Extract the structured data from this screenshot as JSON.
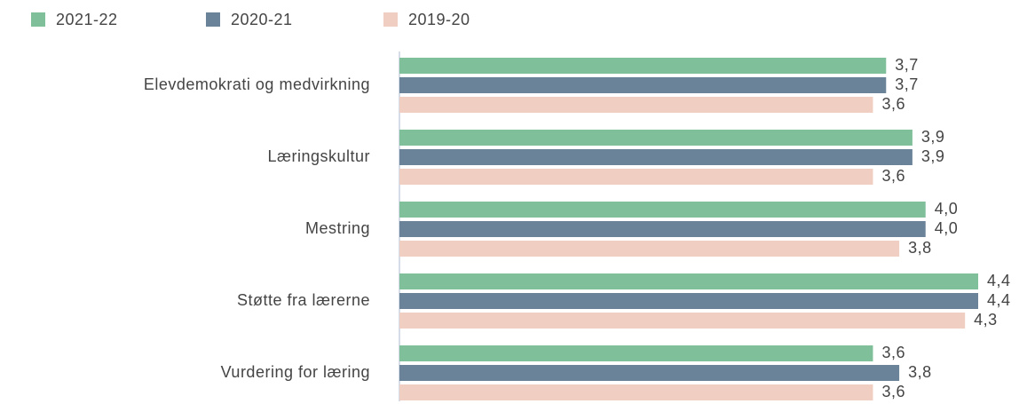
{
  "chart_data": {
    "type": "bar",
    "orientation": "horizontal",
    "categories": [
      "Elevdemokrati og medvirkning",
      "Læringskultur",
      "Mestring",
      "Støtte fra lærerne",
      "Vurdering for læring"
    ],
    "series": [
      {
        "name": "2021-22",
        "color": "#7fbf9a",
        "values": [
          3.7,
          3.9,
          4.0,
          4.4,
          3.6
        ],
        "value_labels": [
          "3,7",
          "3,9",
          "4,0",
          "4,4",
          "3,6"
        ]
      },
      {
        "name": "2020-21",
        "color": "#6b8399",
        "values": [
          3.7,
          3.9,
          4.0,
          4.4,
          3.8
        ],
        "value_labels": [
          "3,7",
          "3,9",
          "4,0",
          "4,4",
          "3,8"
        ]
      },
      {
        "name": "2019-20",
        "color": "#f0cfc2",
        "values": [
          3.6,
          3.6,
          3.8,
          4.3,
          3.6
        ],
        "value_labels": [
          "3,6",
          "3,6",
          "3,8",
          "4,3",
          "3,6"
        ]
      }
    ],
    "xlim": [
      0,
      4.4
    ]
  }
}
